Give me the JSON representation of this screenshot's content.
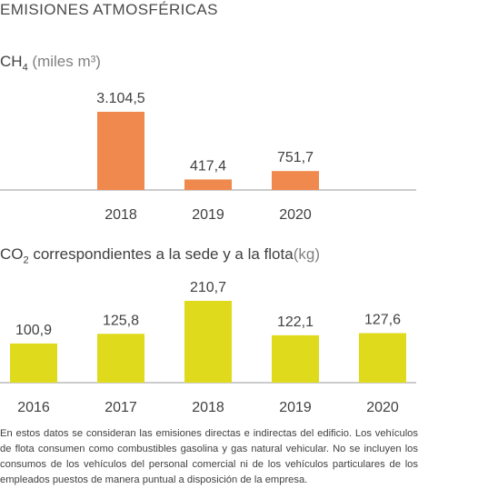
{
  "page": {
    "title": "EMISIONES ATMOSFÉRICAS",
    "footnote": "En estos datos se consideran las emisiones directas e indirectas del edificio. Los vehículos de flota consumen como combustibles gasolina y gas natural vehicular. No se incluyen los consumos de los vehículos del personal comercial ni de los vehículos particulares de los empleados puestos de manera puntual a disposición de la empresa."
  },
  "chart_data": [
    {
      "type": "bar",
      "title_main": "CH",
      "title_sub": "4",
      "title_unit": "(miles m³)",
      "categories": [
        "2018",
        "2019",
        "2020"
      ],
      "values": [
        3104.5,
        417.4,
        751.7
      ],
      "value_labels": [
        "3.104,5",
        "417,4",
        "751,7"
      ],
      "bar_color": "#f0894d",
      "grid": false
    },
    {
      "type": "bar",
      "title_main": "CO",
      "title_sub": "2",
      "title_text": " correspondientes a la sede y a la flota",
      "title_unit": "(kg)",
      "categories": [
        "2016",
        "2017",
        "2018",
        "2019",
        "2020"
      ],
      "values": [
        100.9,
        125.8,
        210.7,
        122.1,
        127.6
      ],
      "value_labels": [
        "100,9",
        "125,8",
        "210,7",
        "122,1",
        "127,6"
      ],
      "bar_color": "#dfdb1c",
      "grid": false
    }
  ]
}
